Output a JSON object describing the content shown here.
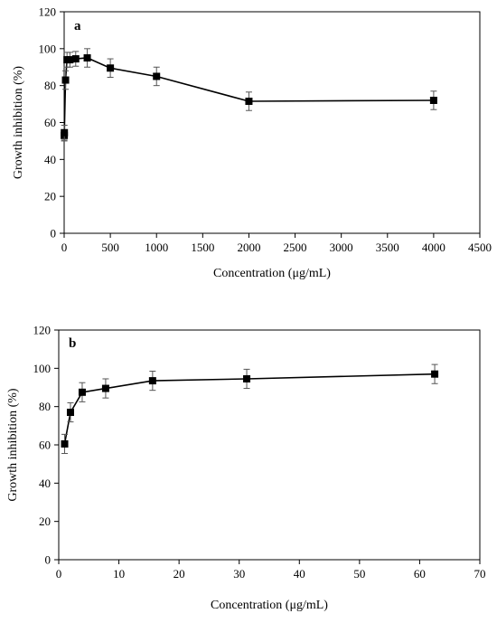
{
  "chart_data": [
    {
      "type": "line",
      "panel_label": "a",
      "xlabel": "Concentration (μg/mL)",
      "ylabel": "Growth inhibition (%)",
      "xlim": [
        0,
        4500
      ],
      "ylim": [
        0,
        120
      ],
      "x_ticks": [
        0,
        500,
        1000,
        1500,
        2000,
        2500,
        3000,
        3500,
        4000,
        4500
      ],
      "y_ticks": [
        0,
        20,
        40,
        60,
        80,
        100,
        120
      ],
      "grid": false,
      "legend": "none",
      "marker": "square",
      "color": "#000000",
      "series": [
        {
          "x": [
            1,
            2,
            15,
            31,
            62,
            125,
            250,
            500,
            1000,
            2000,
            4000
          ],
          "y": [
            53,
            54.5,
            83,
            94,
            94,
            94.5,
            95,
            89.5,
            85,
            71.5,
            72
          ],
          "error": [
            3,
            4,
            5,
            4,
            4,
            4,
            5,
            5,
            5,
            5,
            5
          ]
        }
      ]
    },
    {
      "type": "line",
      "panel_label": "b",
      "xlabel": "Concentration (μg/mL)",
      "ylabel": "Growth inhibition (%)",
      "xlim": [
        0,
        70
      ],
      "ylim": [
        0,
        120
      ],
      "x_ticks": [
        0,
        10,
        20,
        30,
        40,
        50,
        60,
        70
      ],
      "y_ticks": [
        0,
        20,
        40,
        60,
        80,
        100,
        120
      ],
      "grid": false,
      "legend": "none",
      "marker": "square",
      "color": "#000000",
      "series": [
        {
          "x": [
            0.98,
            1.95,
            3.9,
            7.8,
            15.6,
            31.25,
            62.5
          ],
          "y": [
            60.5,
            77,
            87.5,
            89.5,
            93.5,
            94.5,
            97
          ],
          "error": [
            5,
            5,
            5,
            5,
            5,
            5,
            5
          ]
        }
      ]
    }
  ]
}
